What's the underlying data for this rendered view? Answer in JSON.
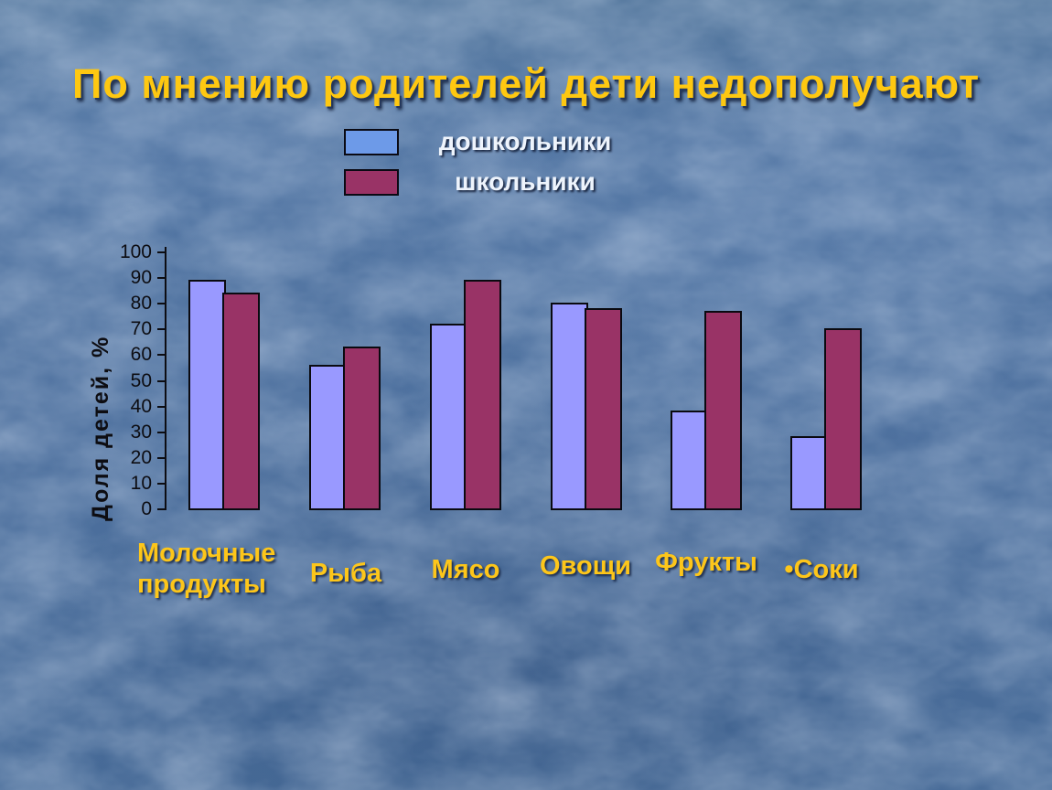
{
  "slide": {
    "title": "По мнению родителей дети недополучают"
  },
  "legend": {
    "items": [
      {
        "label": "дошкольники",
        "color": "#6d9ae8"
      },
      {
        "label": "школьники",
        "color": "#993366"
      }
    ]
  },
  "chart_data": {
    "type": "bar",
    "title": "По мнению родителей дети недополучают",
    "xlabel": "",
    "ylabel": "Доля детей, %",
    "ylim": [
      0,
      100
    ],
    "yticks": [
      0,
      10,
      20,
      30,
      40,
      50,
      60,
      70,
      80,
      90,
      100
    ],
    "grid": false,
    "legend_position": "top",
    "categories": [
      "Молочные продукты",
      "Рыба",
      "Мясо",
      "Овощи",
      "Фрукты",
      "Соки"
    ],
    "category_display": [
      "Молочные продукты",
      "Рыба",
      "Мясо",
      "Овощи",
      "Фрукты",
      "•Соки"
    ],
    "series": [
      {
        "name": "дошкольники",
        "color": "#9999ff",
        "values": [
          89,
          56,
          72,
          80,
          38,
          28
        ]
      },
      {
        "name": "школьники",
        "color": "#993366",
        "values": [
          84,
          63,
          89,
          78,
          77,
          70
        ]
      }
    ]
  },
  "colors": {
    "background_base": "#4d709e",
    "title_text": "#fec811",
    "category_text": "#fdc61a",
    "legend_text": "#eef4fc",
    "axis_text": "#0d0d12",
    "bar_preschool": "#9999ff",
    "bar_school": "#993366",
    "legend_swatch_preschool": "#6d9ae8",
    "legend_swatch_school": "#993366"
  }
}
